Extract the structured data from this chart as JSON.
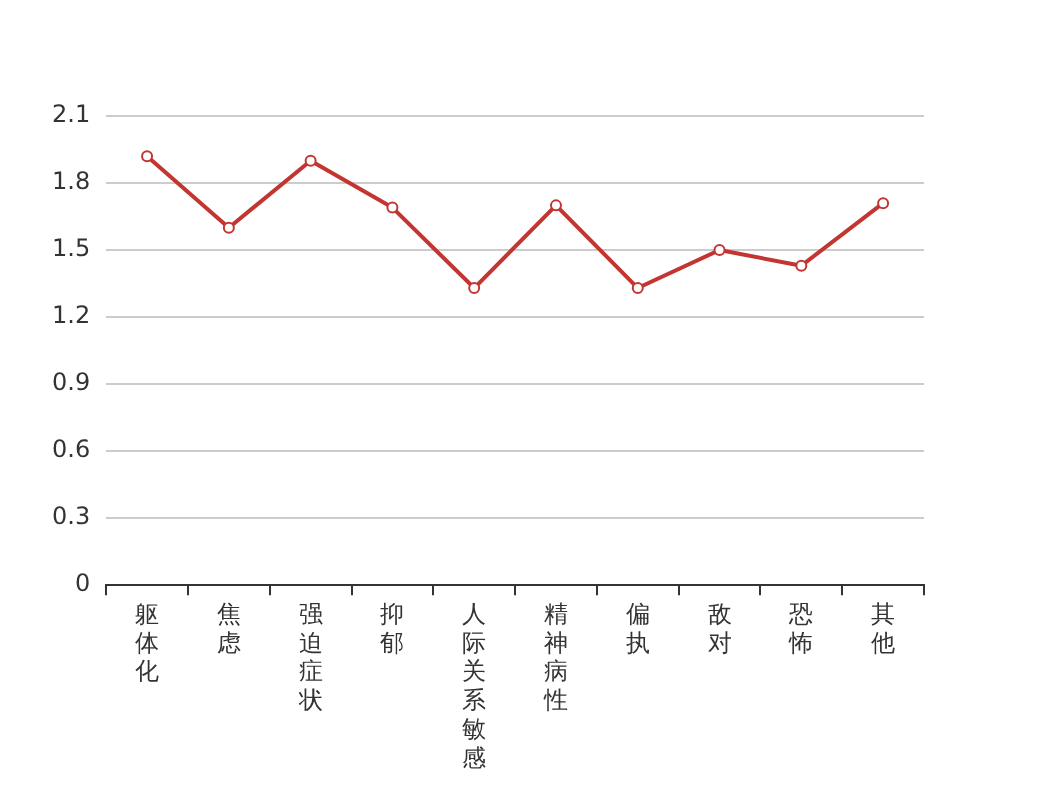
{
  "chart_data": {
    "type": "line",
    "categories": [
      "躯体化",
      "焦虑",
      "强迫症状",
      "抑郁",
      "人际关系敏感",
      "精神病性",
      "偏执",
      "敌对",
      "恐怖",
      "其他"
    ],
    "series": [
      {
        "color": "#c23531",
        "values": [
          1.92,
          1.6,
          1.9,
          1.69,
          1.33,
          1.7,
          1.33,
          1.5,
          1.43,
          1.71
        ]
      }
    ],
    "ylim": [
      0,
      2.1
    ],
    "yticks": [
      0,
      0.3,
      0.6,
      0.9,
      1.2,
      1.5,
      1.8,
      2.1
    ],
    "grid": "y",
    "legend": false,
    "marker": "circle",
    "line_style": "solid"
  }
}
